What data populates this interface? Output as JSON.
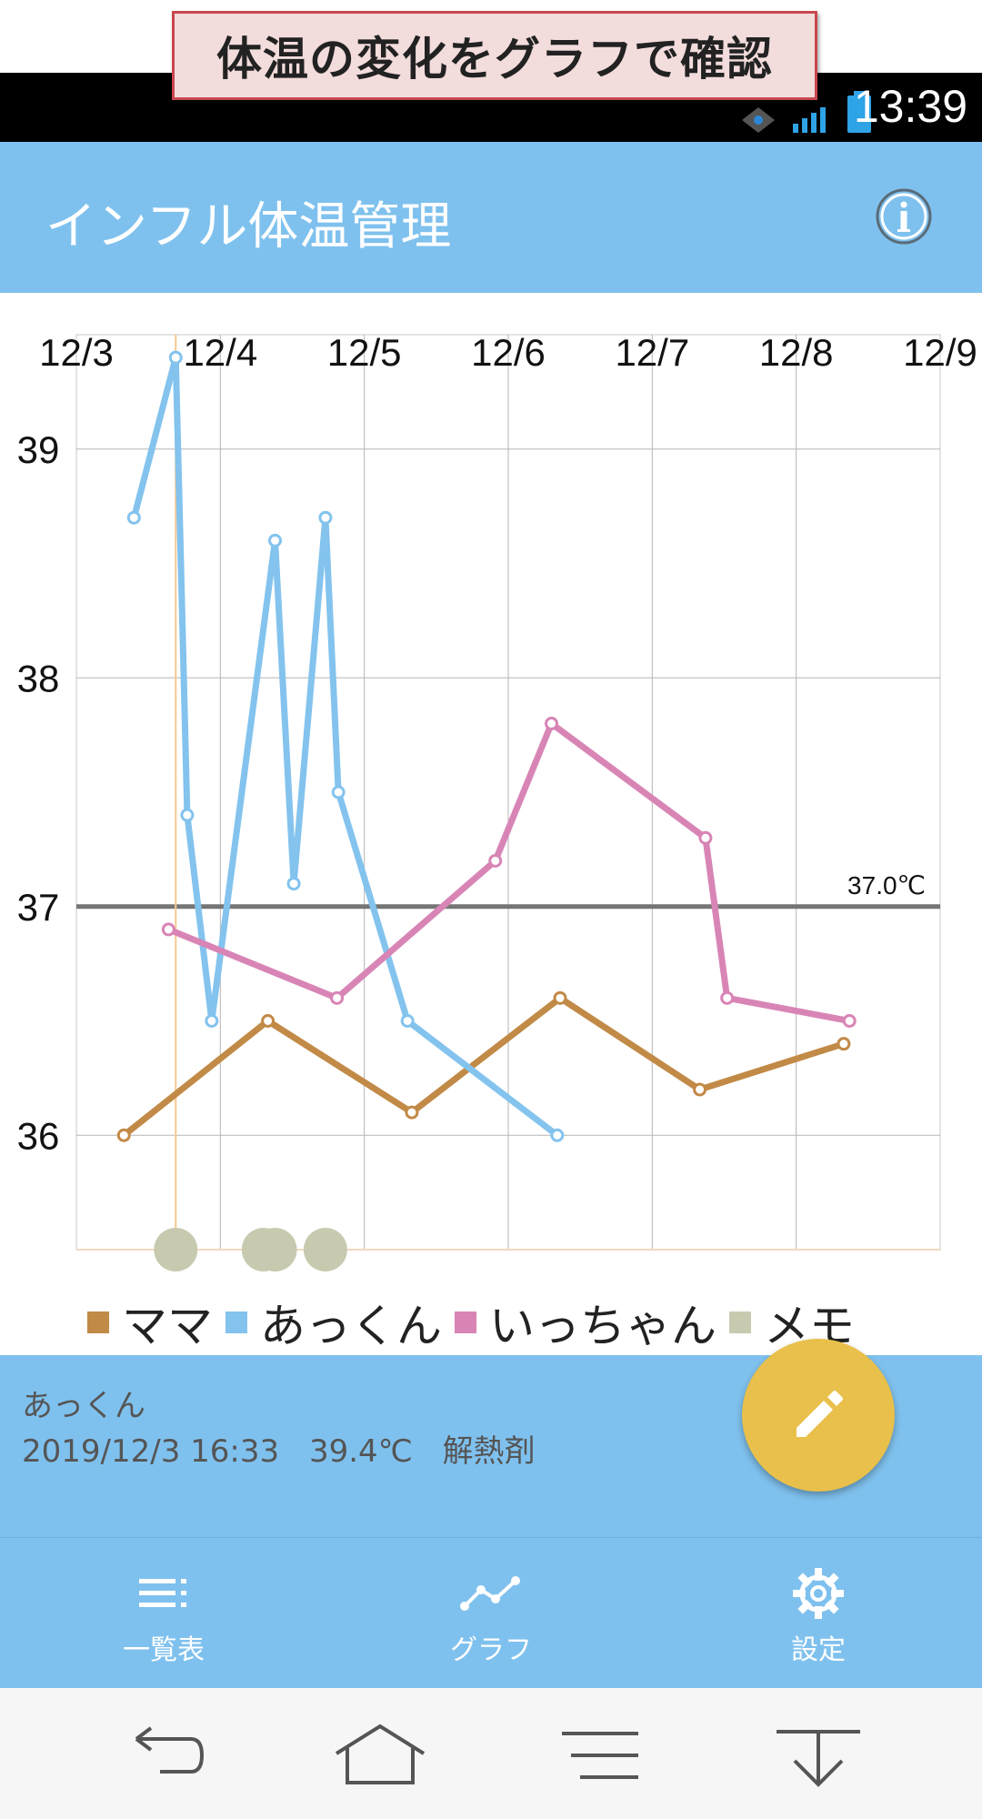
{
  "banner": {
    "text": "体温の変化をグラフで確認"
  },
  "status_bar": {
    "time": "13:39",
    "icons": [
      "wifi-icon",
      "signal-icon",
      "battery-icon"
    ]
  },
  "app_bar": {
    "title": "インフル体温管理",
    "info_icon": "info-icon"
  },
  "chart_data": {
    "type": "line",
    "x_tick_labels": [
      "12/3",
      "12/4",
      "12/5",
      "12/6",
      "12/7",
      "12/8",
      "12/9"
    ],
    "y_tick_labels": [
      "39",
      "38",
      "37",
      "36"
    ],
    "ylim": [
      35.5,
      39.5
    ],
    "x_unit": "days from 12/3 00:00",
    "threshold": {
      "value": 37.0,
      "label": "37.0℃",
      "color": "#757575"
    },
    "series": [
      {
        "name": "ママ",
        "color": "#c28a47",
        "points": [
          [
            0.33,
            36.0
          ],
          [
            1.33,
            36.5
          ],
          [
            2.33,
            36.1
          ],
          [
            3.36,
            36.6
          ],
          [
            4.33,
            36.2
          ],
          [
            5.33,
            36.4
          ]
        ]
      },
      {
        "name": "あっくん",
        "color": "#83c3ee",
        "points": [
          [
            0.4,
            38.7
          ],
          [
            0.69,
            39.4
          ],
          [
            0.77,
            37.4
          ],
          [
            0.94,
            36.5
          ],
          [
            1.38,
            38.6
          ],
          [
            1.51,
            37.1
          ],
          [
            1.73,
            38.7
          ],
          [
            1.82,
            37.5
          ],
          [
            2.3,
            36.5
          ],
          [
            3.34,
            36.0
          ]
        ]
      },
      {
        "name": "いっちゃん",
        "color": "#d885b6",
        "points": [
          [
            0.64,
            36.9
          ],
          [
            1.81,
            36.6
          ],
          [
            2.91,
            37.2
          ],
          [
            3.3,
            37.8
          ],
          [
            4.37,
            37.3
          ],
          [
            4.52,
            36.6
          ],
          [
            5.37,
            36.5
          ]
        ]
      }
    ],
    "memos": {
      "name": "メモ",
      "color": "#c7caaf",
      "x": [
        0.69,
        1.3,
        1.38,
        1.73
      ]
    },
    "selected_x": 0.69,
    "grid": true
  },
  "legend": [
    {
      "label": "ママ",
      "color": "#c28a47"
    },
    {
      "label": "あっくん",
      "color": "#83c3ee"
    },
    {
      "label": "いっちゃん",
      "color": "#d885b6"
    },
    {
      "label": "メモ",
      "color": "#c7caaf"
    }
  ],
  "selection": {
    "name": "あっくん",
    "datetime": "2019/12/3 16:33",
    "temperature": "39.4℃",
    "note": "解熱剤"
  },
  "fab": {
    "icon": "pencil-icon"
  },
  "bottom_nav": [
    {
      "label": "一覧表",
      "icon": "list-icon"
    },
    {
      "label": "グラフ",
      "icon": "graph-icon"
    },
    {
      "label": "設定",
      "icon": "gear-icon"
    }
  ],
  "system_nav": [
    "back-icon",
    "home-icon",
    "menu-icon",
    "notification-pull-icon"
  ]
}
